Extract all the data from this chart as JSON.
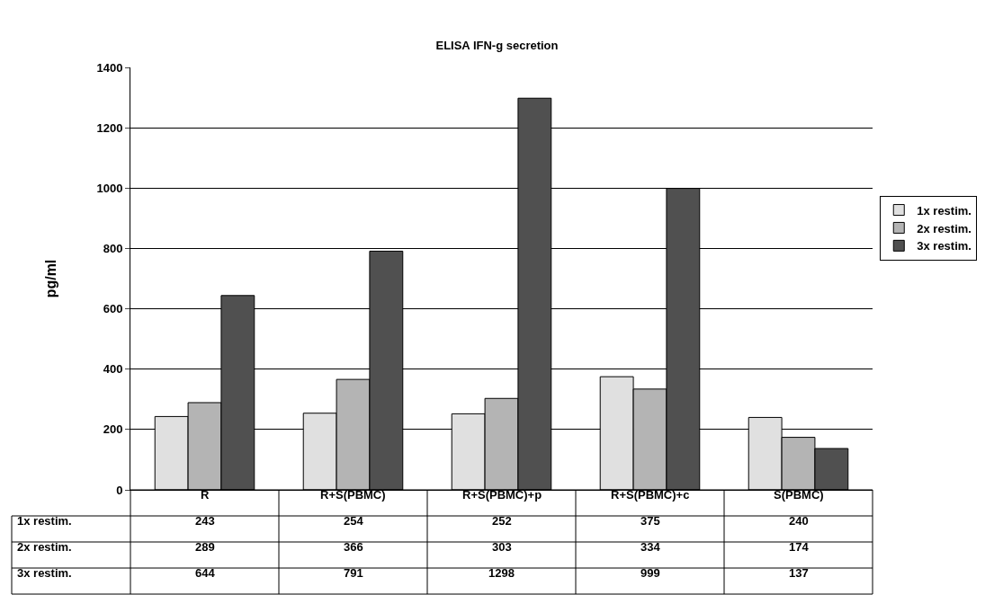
{
  "chart_data": {
    "type": "bar",
    "title": "ELISA IFN-g secretion",
    "ylabel": "pg/ml",
    "categories": [
      "R",
      "R+S(PBMC)",
      "R+S(PBMC)+p",
      "R+S(PBMC)+c",
      "S(PBMC)"
    ],
    "series": [
      {
        "name": "1x restim.",
        "color": "#e0e0e0",
        "values": [
          243,
          254,
          252,
          375,
          240
        ]
      },
      {
        "name": "2x restim.",
        "color": "#b4b4b4",
        "values": [
          289,
          366,
          303,
          334,
          174
        ]
      },
      {
        "name": "3x restim.",
        "color": "#505050",
        "values": [
          644,
          791,
          1298,
          999,
          137
        ]
      }
    ],
    "ylim": [
      0,
      1400
    ],
    "yticks": [
      0,
      200,
      400,
      600,
      800,
      1000,
      1200,
      1400
    ],
    "grid": "y",
    "legend": "right",
    "data_labels": true
  }
}
